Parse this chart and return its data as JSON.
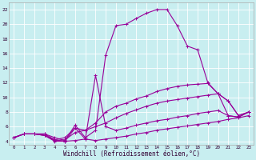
{
  "background_color": "#c8eef0",
  "grid_color": "#ffffff",
  "line_color": "#990099",
  "xlabel": "Windchill (Refroidissement éolien,°C)",
  "xlim": [
    -0.5,
    23.5
  ],
  "ylim": [
    3.5,
    23
  ],
  "yticks": [
    4,
    6,
    8,
    10,
    12,
    14,
    16,
    18,
    20,
    22
  ],
  "xticks": [
    0,
    1,
    2,
    3,
    4,
    5,
    6,
    7,
    8,
    9,
    10,
    11,
    12,
    13,
    14,
    15,
    16,
    17,
    18,
    19,
    20,
    21,
    22,
    23
  ],
  "lines": [
    [
      4.5,
      5.0,
      5.0,
      4.8,
      4.0,
      4.0,
      4.1,
      4.3,
      4.1,
      4.3,
      4.5,
      4.7,
      5.0,
      5.2,
      5.5,
      5.7,
      5.9,
      6.1,
      6.3,
      6.5,
      6.7,
      7.0,
      7.2,
      7.5
    ],
    [
      4.5,
      5.0,
      5.0,
      4.8,
      4.1,
      4.2,
      5.2,
      5.5,
      6.0,
      6.5,
      7.2,
      7.8,
      8.3,
      8.8,
      9.2,
      9.5,
      9.7,
      9.9,
      10.1,
      10.3,
      10.5,
      7.5,
      7.3,
      8.0
    ],
    [
      4.5,
      5.0,
      5.0,
      4.8,
      4.2,
      4.5,
      5.8,
      5.5,
      6.5,
      8.0,
      8.8,
      9.2,
      9.8,
      10.2,
      10.8,
      11.2,
      11.5,
      11.7,
      11.8,
      11.9,
      10.5,
      9.5,
      7.5,
      8.0
    ],
    [
      4.5,
      5.0,
      5.0,
      5.0,
      4.2,
      4.0,
      5.8,
      4.3,
      13.0,
      6.0,
      5.5,
      5.8,
      6.2,
      6.5,
      6.8,
      7.0,
      7.3,
      7.5,
      7.8,
      8.0,
      8.2,
      7.5,
      7.3,
      8.0
    ],
    [
      4.5,
      5.0,
      5.0,
      5.0,
      4.5,
      4.1,
      6.2,
      4.5,
      5.5,
      15.8,
      19.8,
      20.0,
      20.8,
      21.5,
      22.0,
      22.0,
      19.8,
      17.0,
      16.5,
      12.0,
      10.5,
      9.5,
      7.5,
      8.0
    ]
  ]
}
